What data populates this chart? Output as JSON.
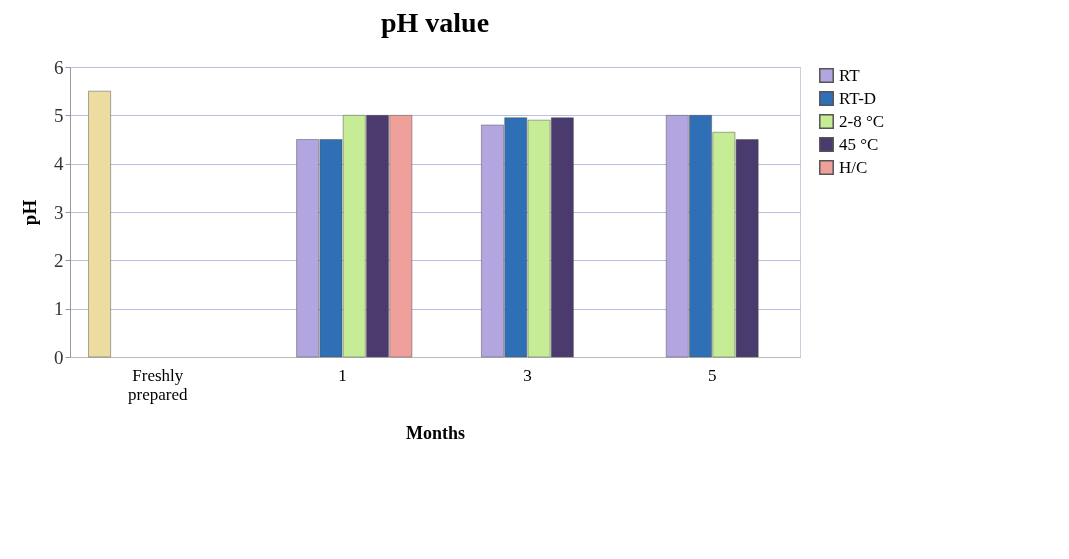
{
  "chart_data": {
    "type": "bar",
    "title": "pH value",
    "xlabel": "Months",
    "ylabel": "pH",
    "categories": [
      "Freshly prepared",
      "1",
      "3",
      "5"
    ],
    "series": [
      {
        "color": "#ecdca0",
        "values": [
          5.5,
          null,
          null,
          null
        ]
      },
      {
        "name": "RT",
        "color": "#b3a6e0",
        "values": [
          null,
          4.5,
          4.8,
          5.0
        ]
      },
      {
        "name": "RT-D",
        "color": "#2e6fb5",
        "values": [
          null,
          4.5,
          4.95,
          5.0
        ]
      },
      {
        "name": "2-8  °C",
        "color": "#c6ec96",
        "values": [
          null,
          5.0,
          4.9,
          4.65
        ]
      },
      {
        "name": "45 °C",
        "color": "#4a3a6e",
        "values": [
          null,
          5.0,
          4.95,
          4.5
        ]
      },
      {
        "name": "H/C",
        "color": "#f0a09a",
        "values": [
          null,
          5.0,
          null,
          null
        ]
      }
    ],
    "ylim": [
      0,
      6
    ],
    "yticks": [
      0,
      1,
      2,
      3,
      4,
      5,
      6
    ],
    "grid": "y",
    "legend": "right"
  }
}
